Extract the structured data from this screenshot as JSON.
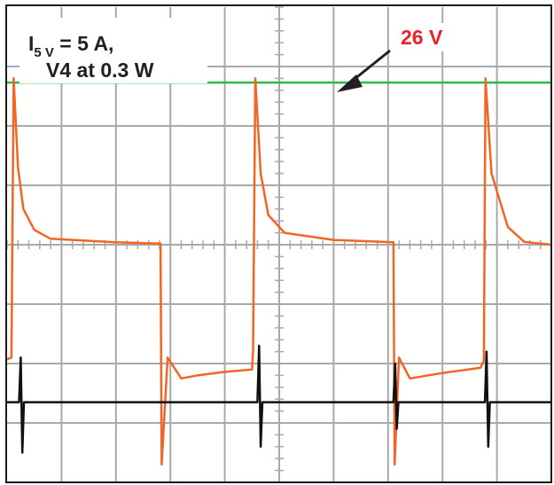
{
  "annotations": {
    "current_prefix": "I",
    "current_subscript": "5 V",
    "current_value": " = 5 A,",
    "line2": "V4 at 0.3 W",
    "voltage_label": "26 V"
  },
  "colors": {
    "background": "#ffffff",
    "grid": "#a9a9a9",
    "frame": "#1a1a1a",
    "green_trace": "#2db84a",
    "orange_trace": "#f26522",
    "black_trace": "#111111",
    "label_red": "#e8222d",
    "label_black": "#231f20"
  },
  "chart_data": {
    "type": "line",
    "title": "",
    "xlabel": "",
    "ylabel": "",
    "grid": true,
    "x_divisions": 10,
    "y_divisions": 8,
    "xlim": [
      0,
      10
    ],
    "ylim": [
      0,
      8
    ],
    "series": [
      {
        "color": "#2db84a",
        "points": [
          [
            0.0,
            6.73
          ],
          [
            10.0,
            6.73
          ]
        ]
      },
      {
        "color": "#f26522",
        "points": [
          [
            0.0,
            2.07
          ],
          [
            0.08,
            2.1
          ],
          [
            0.12,
            6.8
          ],
          [
            0.2,
            5.3
          ],
          [
            0.3,
            4.6
          ],
          [
            0.5,
            4.25
          ],
          [
            0.8,
            4.1
          ],
          [
            2.0,
            4.04
          ],
          [
            2.82,
            4.02
          ],
          [
            2.84,
            0.3
          ],
          [
            2.95,
            2.1
          ],
          [
            3.2,
            1.75
          ],
          [
            3.5,
            1.8
          ],
          [
            4.0,
            1.86
          ],
          [
            4.5,
            1.9
          ],
          [
            4.52,
            2.2
          ],
          [
            4.56,
            6.8
          ],
          [
            4.66,
            5.2
          ],
          [
            4.8,
            4.5
          ],
          [
            5.1,
            4.2
          ],
          [
            6.0,
            4.08
          ],
          [
            7.1,
            4.04
          ],
          [
            7.12,
            0.3
          ],
          [
            7.2,
            2.1
          ],
          [
            7.4,
            1.75
          ],
          [
            8.0,
            1.84
          ],
          [
            8.7,
            1.93
          ],
          [
            8.76,
            2.05
          ],
          [
            8.79,
            6.8
          ],
          [
            8.9,
            5.2
          ],
          [
            9.2,
            4.3
          ],
          [
            9.5,
            4.05
          ],
          [
            10.0,
            4.0
          ]
        ]
      },
      {
        "color": "#111111",
        "points": [
          [
            0.0,
            1.35
          ],
          [
            0.22,
            1.35
          ],
          [
            0.25,
            2.1
          ],
          [
            0.28,
            0.5
          ],
          [
            0.31,
            1.35
          ],
          [
            4.6,
            1.35
          ],
          [
            4.63,
            2.3
          ],
          [
            4.66,
            0.6
          ],
          [
            4.69,
            1.35
          ],
          [
            7.1,
            1.35
          ],
          [
            7.13,
            2.0
          ],
          [
            7.16,
            0.9
          ],
          [
            7.19,
            1.35
          ],
          [
            8.78,
            1.35
          ],
          [
            8.81,
            2.2
          ],
          [
            8.84,
            0.6
          ],
          [
            8.87,
            1.35
          ],
          [
            10.0,
            1.35
          ]
        ]
      }
    ]
  }
}
